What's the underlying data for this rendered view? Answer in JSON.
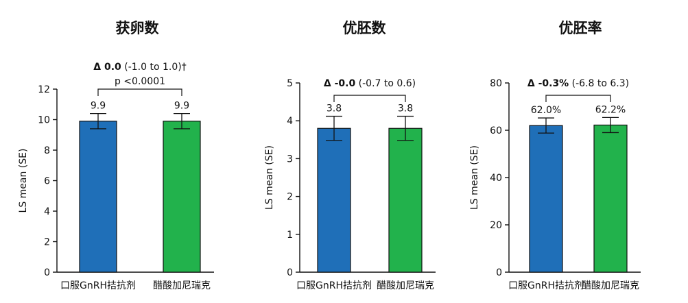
{
  "chart_data": [
    {
      "type": "bar",
      "title": "获卵数",
      "ylabel": "LS mean (SE)",
      "ylim": [
        0,
        12
      ],
      "yticks": [
        0,
        2,
        4,
        6,
        8,
        10,
        12
      ],
      "categories": [
        "口服GnRH拮抗剂",
        "醋酸加尼瑞克"
      ],
      "values": [
        9.9,
        9.9
      ],
      "errors": [
        0.5,
        0.5
      ],
      "value_labels": [
        "9.9",
        "9.9"
      ],
      "colors": [
        "#1f6fb8",
        "#22b24c"
      ],
      "annotation": {
        "delta_label": "Δ 0.0",
        "delta_ci": " (-1.0 to 1.0)†",
        "p_value": "p <0.0001"
      }
    },
    {
      "type": "bar",
      "title": "优胚数",
      "ylabel": "LS mean (SE)",
      "ylim": [
        0,
        5
      ],
      "yticks": [
        0,
        1,
        2,
        3,
        4,
        5
      ],
      "categories": [
        "口服GnRH拮抗剂",
        "醋酸加尼瑞克"
      ],
      "values": [
        3.8,
        3.8
      ],
      "errors": [
        0.32,
        0.32
      ],
      "value_labels": [
        "3.8",
        "3.8"
      ],
      "colors": [
        "#1f6fb8",
        "#22b24c"
      ],
      "annotation": {
        "delta_label": "Δ -0.0",
        "delta_ci": " (-0.7 to 0.6)",
        "p_value": ""
      }
    },
    {
      "type": "bar",
      "title": "优胚率",
      "ylabel": "LS mean (SE)",
      "ylim": [
        0,
        80
      ],
      "yticks": [
        0,
        20,
        40,
        60,
        80
      ],
      "categories": [
        "口服GnRH拮抗剂",
        "醋酸加尼瑞克"
      ],
      "values": [
        62.0,
        62.2
      ],
      "errors": [
        3.2,
        3.2
      ],
      "value_labels": [
        "62.0%",
        "62.2%"
      ],
      "colors": [
        "#1f6fb8",
        "#22b24c"
      ],
      "annotation": {
        "delta_label": "Δ -0.3%",
        "delta_ci": " (-6.8 to 6.3)",
        "p_value": ""
      }
    }
  ]
}
